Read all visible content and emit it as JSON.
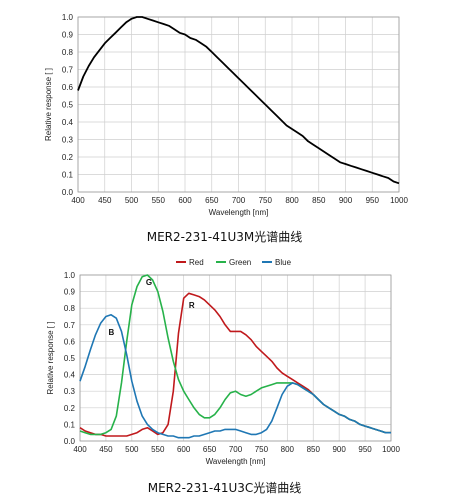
{
  "captions": {
    "mono": "MER2-231-41U3M光谱曲线",
    "color": "MER2-231-41U3C光谱曲线"
  },
  "chart_data": [
    {
      "type": "line",
      "title": "",
      "xlabel": "Wavelength [nm]",
      "ylabel": "Relative response [ ]",
      "xlim": [
        400,
        1000
      ],
      "ylim": [
        0,
        1.0
      ],
      "xticks": [
        400,
        450,
        500,
        550,
        600,
        650,
        700,
        750,
        800,
        850,
        900,
        950,
        1000
      ],
      "yticks": [
        0.0,
        0.1,
        0.2,
        0.3,
        0.4,
        0.5,
        0.6,
        0.7,
        0.8,
        0.9,
        1.0
      ],
      "grid": true,
      "colors": {
        "line": "#000000",
        "grid": "#cfcfcf"
      },
      "series": [
        {
          "x": [
            400,
            410,
            420,
            430,
            440,
            450,
            460,
            470,
            480,
            490,
            500,
            510,
            520,
            530,
            540,
            550,
            560,
            570,
            580,
            590,
            600,
            610,
            620,
            630,
            640,
            650,
            660,
            670,
            680,
            690,
            700,
            710,
            720,
            730,
            740,
            750,
            760,
            770,
            780,
            790,
            800,
            810,
            820,
            830,
            840,
            850,
            860,
            870,
            880,
            890,
            900,
            910,
            920,
            930,
            940,
            950,
            960,
            970,
            980,
            990,
            1000
          ],
          "values": [
            0.58,
            0.66,
            0.72,
            0.77,
            0.81,
            0.85,
            0.88,
            0.91,
            0.94,
            0.97,
            0.99,
            1.0,
            1.0,
            0.99,
            0.98,
            0.97,
            0.96,
            0.95,
            0.93,
            0.91,
            0.9,
            0.88,
            0.87,
            0.85,
            0.83,
            0.8,
            0.77,
            0.74,
            0.71,
            0.68,
            0.65,
            0.62,
            0.59,
            0.56,
            0.53,
            0.5,
            0.47,
            0.44,
            0.41,
            0.38,
            0.36,
            0.34,
            0.32,
            0.29,
            0.27,
            0.25,
            0.23,
            0.21,
            0.19,
            0.17,
            0.16,
            0.15,
            0.14,
            0.13,
            0.12,
            0.11,
            0.1,
            0.09,
            0.08,
            0.06,
            0.05
          ]
        }
      ]
    },
    {
      "type": "line",
      "title": "",
      "xlabel": "Wavelength [nm]",
      "ylabel": "Relative response [ ]",
      "xlim": [
        400,
        1000
      ],
      "ylim": [
        0,
        1.0
      ],
      "xticks": [
        400,
        450,
        500,
        550,
        600,
        650,
        700,
        750,
        800,
        850,
        900,
        950,
        1000
      ],
      "yticks": [
        0.0,
        0.1,
        0.2,
        0.3,
        0.4,
        0.5,
        0.6,
        0.7,
        0.8,
        0.9,
        1.0
      ],
      "grid": true,
      "legend_position": "top",
      "colors": {
        "grid": "#cfcfcf"
      },
      "annotations": [
        "B",
        "G",
        "R"
      ],
      "series": [
        {
          "name": "Red",
          "color": "#c0191c",
          "x": [
            400,
            410,
            420,
            430,
            440,
            450,
            460,
            470,
            480,
            490,
            500,
            510,
            520,
            530,
            540,
            550,
            560,
            570,
            580,
            590,
            600,
            610,
            620,
            630,
            640,
            650,
            660,
            670,
            680,
            690,
            700,
            710,
            720,
            730,
            740,
            750,
            760,
            770,
            780,
            790,
            800,
            810,
            820,
            830,
            840,
            850,
            860,
            870,
            880,
            890,
            900,
            910,
            920,
            930,
            940,
            950,
            960,
            970,
            980,
            990,
            1000
          ],
          "values": [
            0.08,
            0.06,
            0.05,
            0.04,
            0.04,
            0.03,
            0.03,
            0.03,
            0.03,
            0.03,
            0.04,
            0.05,
            0.07,
            0.08,
            0.06,
            0.04,
            0.05,
            0.1,
            0.3,
            0.65,
            0.86,
            0.89,
            0.88,
            0.87,
            0.85,
            0.82,
            0.79,
            0.75,
            0.7,
            0.66,
            0.66,
            0.66,
            0.64,
            0.61,
            0.57,
            0.54,
            0.51,
            0.48,
            0.44,
            0.41,
            0.39,
            0.37,
            0.35,
            0.33,
            0.31,
            0.28,
            0.25,
            0.22,
            0.2,
            0.18,
            0.16,
            0.15,
            0.13,
            0.12,
            0.1,
            0.09,
            0.08,
            0.07,
            0.06,
            0.05,
            0.05
          ]
        },
        {
          "name": "Green",
          "color": "#27b24a",
          "x": [
            400,
            410,
            420,
            430,
            440,
            450,
            460,
            470,
            480,
            490,
            500,
            510,
            520,
            530,
            540,
            550,
            560,
            570,
            580,
            590,
            600,
            610,
            620,
            630,
            640,
            650,
            660,
            670,
            680,
            690,
            700,
            710,
            720,
            730,
            740,
            750,
            760,
            770,
            780,
            790,
            800,
            810,
            820,
            830,
            840,
            850,
            860,
            870,
            880,
            890,
            900,
            910,
            920,
            930,
            940,
            950,
            960,
            970,
            980,
            990,
            1000
          ],
          "values": [
            0.06,
            0.05,
            0.04,
            0.04,
            0.04,
            0.05,
            0.07,
            0.15,
            0.35,
            0.6,
            0.82,
            0.93,
            0.99,
            1.0,
            0.97,
            0.9,
            0.78,
            0.62,
            0.48,
            0.37,
            0.3,
            0.25,
            0.2,
            0.16,
            0.14,
            0.14,
            0.16,
            0.2,
            0.25,
            0.29,
            0.3,
            0.28,
            0.27,
            0.28,
            0.3,
            0.32,
            0.33,
            0.34,
            0.35,
            0.35,
            0.35,
            0.35,
            0.34,
            0.32,
            0.3,
            0.28,
            0.25,
            0.22,
            0.2,
            0.18,
            0.16,
            0.15,
            0.13,
            0.12,
            0.1,
            0.09,
            0.08,
            0.07,
            0.06,
            0.05,
            0.05
          ]
        },
        {
          "name": "Blue",
          "color": "#1f77b4",
          "x": [
            400,
            410,
            420,
            430,
            440,
            450,
            460,
            470,
            480,
            490,
            500,
            510,
            520,
            530,
            540,
            550,
            560,
            570,
            580,
            590,
            600,
            610,
            620,
            630,
            640,
            650,
            660,
            670,
            680,
            690,
            700,
            710,
            720,
            730,
            740,
            750,
            760,
            770,
            780,
            790,
            800,
            810,
            820,
            830,
            840,
            850,
            860,
            870,
            880,
            890,
            900,
            910,
            920,
            930,
            940,
            950,
            960,
            970,
            980,
            990,
            1000
          ],
          "values": [
            0.36,
            0.45,
            0.55,
            0.64,
            0.71,
            0.75,
            0.76,
            0.74,
            0.66,
            0.52,
            0.36,
            0.24,
            0.15,
            0.1,
            0.07,
            0.05,
            0.04,
            0.03,
            0.03,
            0.02,
            0.02,
            0.02,
            0.03,
            0.03,
            0.04,
            0.05,
            0.06,
            0.06,
            0.07,
            0.07,
            0.07,
            0.06,
            0.05,
            0.04,
            0.04,
            0.05,
            0.07,
            0.12,
            0.2,
            0.28,
            0.33,
            0.35,
            0.34,
            0.32,
            0.3,
            0.28,
            0.25,
            0.22,
            0.2,
            0.18,
            0.16,
            0.15,
            0.13,
            0.12,
            0.1,
            0.09,
            0.08,
            0.07,
            0.06,
            0.05,
            0.05
          ]
        }
      ]
    }
  ]
}
